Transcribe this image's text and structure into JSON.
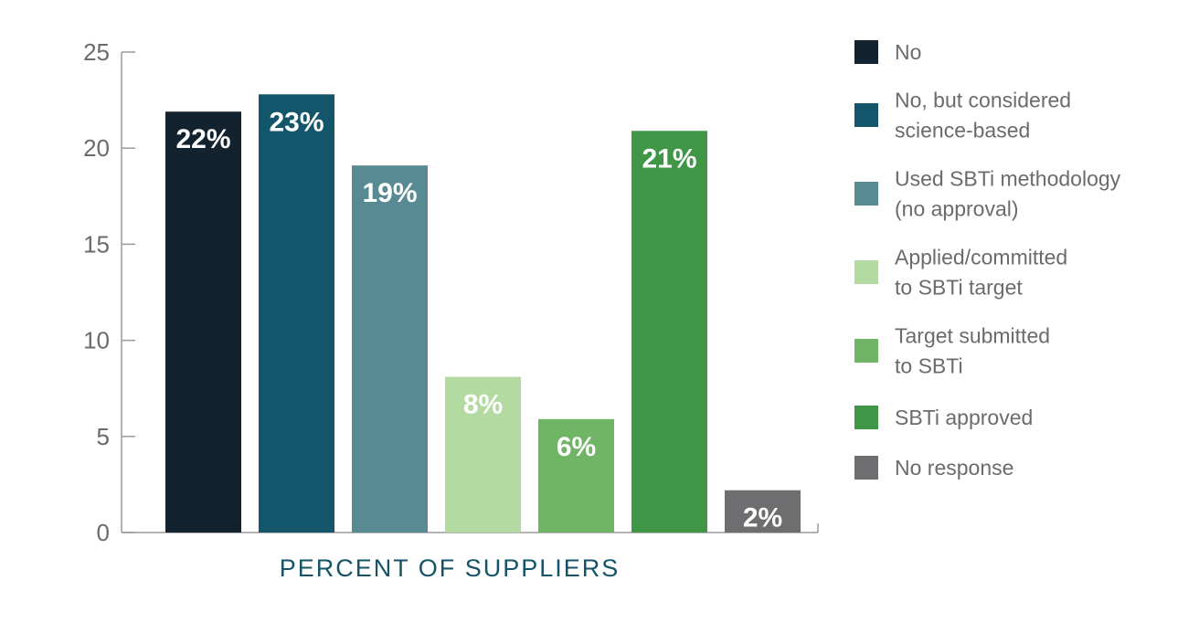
{
  "chart_data": {
    "type": "bar",
    "title": "",
    "xlabel": "PERCENT OF SUPPLIERS",
    "ylabel": "",
    "ylim": [
      0,
      25
    ],
    "yticks": [
      "0",
      "5",
      "10",
      "15",
      "20",
      "25"
    ],
    "grid": false,
    "legend_position": "right",
    "categories": [
      "No",
      "No, but considered science-based",
      "Used SBTi methodology (no approval)",
      "Applied/committed to SBTi target",
      "Target submitted to SBTi",
      "SBTi approved",
      "No response"
    ],
    "legend_lines": [
      [
        "No"
      ],
      [
        "No, but considered",
        "science-based"
      ],
      [
        "Used SBTi methodology",
        "(no approval)"
      ],
      [
        "Applied/committed",
        "to SBTi target"
      ],
      [
        "Target submitted",
        "to SBTi"
      ],
      [
        "SBTi approved"
      ],
      [
        "No response"
      ]
    ],
    "values": [
      21.9,
      22.8,
      19.1,
      8.1,
      5.9,
      20.9,
      2.2
    ],
    "data_labels": [
      "22%",
      "23%",
      "19%",
      "8%",
      "6%",
      "21%",
      "2%"
    ],
    "colors": [
      "#13222f",
      "#13566b",
      "#588a93",
      "#b3dba1",
      "#70b466",
      "#409647",
      "#6e6e70"
    ]
  }
}
